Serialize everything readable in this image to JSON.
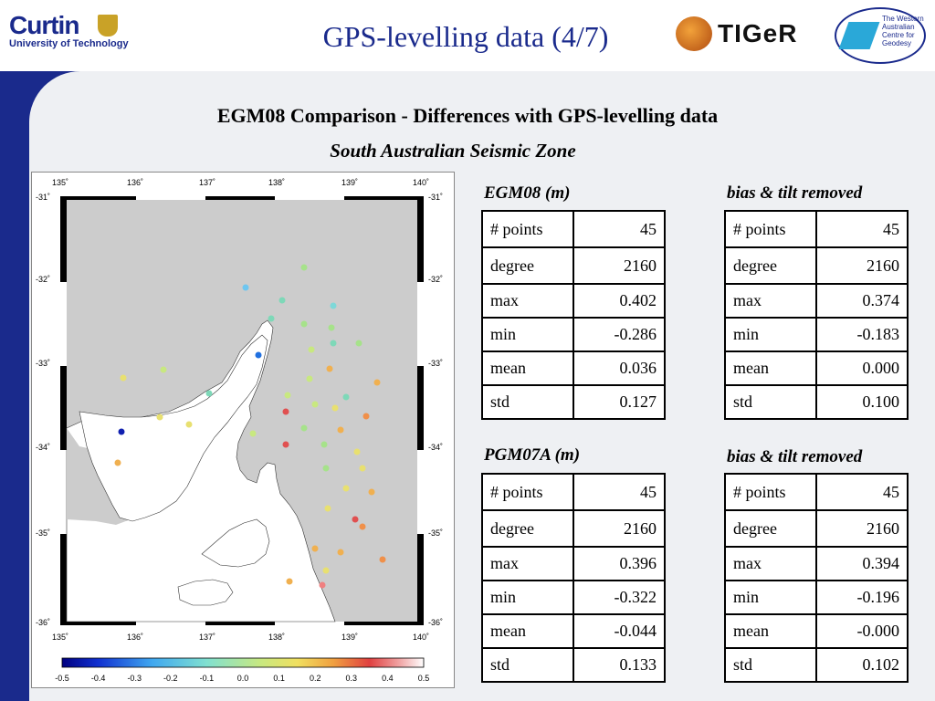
{
  "header": {
    "title": "GPS-levelling data (4/7)",
    "curtin_name": "Curtin",
    "curtin_sub": "University of Technology",
    "tiger_label": "TIGeR",
    "wacg_label": "The Western Australian Centre for Geodesy"
  },
  "slide": {
    "heading": "EGM08 Comparison - Differences with GPS-levelling data",
    "subheading": "South Australian Seismic Zone"
  },
  "map": {
    "x_ticks": [
      "135˚",
      "136˚",
      "137˚",
      "138˚",
      "139˚",
      "140˚"
    ],
    "y_ticks": [
      "-31˚",
      "-32˚",
      "-33˚",
      "-34˚",
      "-35˚",
      "-36˚"
    ],
    "colorbar_ticks": [
      "-0.5",
      "-0.4",
      "-0.3",
      "-0.2",
      "-0.1",
      "0.0",
      "0.1",
      "0.2",
      "0.3",
      "0.4",
      "0.5"
    ],
    "colors": {
      "land": "#ffffff",
      "sea": "#cccccc",
      "frame": "#000000"
    }
  },
  "tables": [
    {
      "title": "EGM08 (m)",
      "rows": [
        {
          "label": "# points",
          "value": "45"
        },
        {
          "label": "degree",
          "value": "2160"
        },
        {
          "label": "max",
          "value": "0.402"
        },
        {
          "label": "min",
          "value": "-0.286"
        },
        {
          "label": "mean",
          "value": "0.036"
        },
        {
          "label": "std",
          "value": "0.127"
        }
      ]
    },
    {
      "title": "bias & tilt removed",
      "rows": [
        {
          "label": "# points",
          "value": "45"
        },
        {
          "label": "degree",
          "value": "2160"
        },
        {
          "label": "max",
          "value": "0.374"
        },
        {
          "label": "min",
          "value": "-0.183"
        },
        {
          "label": "mean",
          "value": "0.000"
        },
        {
          "label": "std",
          "value": "0.100"
        }
      ]
    },
    {
      "title": "PGM07A (m)",
      "rows": [
        {
          "label": "# points",
          "value": "45"
        },
        {
          "label": "degree",
          "value": "2160"
        },
        {
          "label": "max",
          "value": "0.396"
        },
        {
          "label": "min",
          "value": "-0.322"
        },
        {
          "label": "mean",
          "value": "-0.044"
        },
        {
          "label": "std",
          "value": "0.133"
        }
      ]
    },
    {
      "title": "bias & tilt removed",
      "rows": [
        {
          "label": "# points",
          "value": "45"
        },
        {
          "label": "degree",
          "value": "2160"
        },
        {
          "label": "max",
          "value": "0.394"
        },
        {
          "label": "min",
          "value": "-0.196"
        },
        {
          "label": "mean",
          "value": "-0.000"
        },
        {
          "label": "std",
          "value": "0.102"
        }
      ]
    }
  ]
}
